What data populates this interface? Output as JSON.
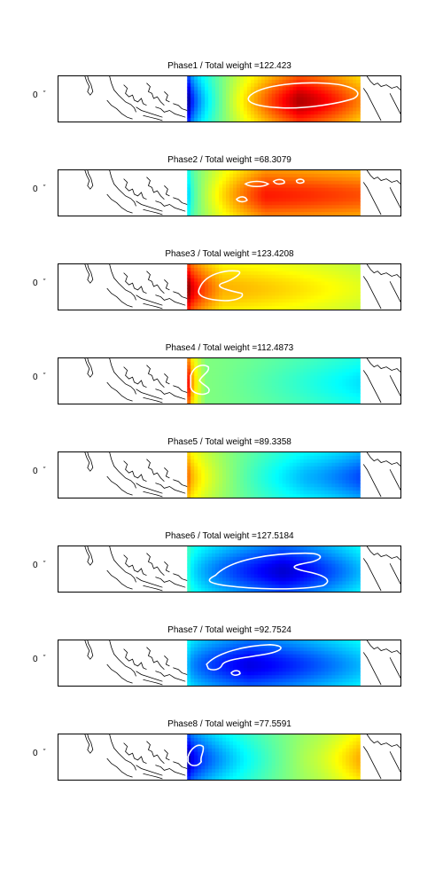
{
  "panels": [
    {
      "title": "Phase1 / Total weight =122.423",
      "ylabel": "0",
      "ytick": "″",
      "anomaly": {
        "west": 0.05,
        "center": 0.95,
        "east": 0.75,
        "center_x": 0.65
      },
      "contour": "positive"
    },
    {
      "title": "Phase2 / Total weight =68.3079",
      "ylabel": "0",
      "ytick": "″",
      "anomaly": {
        "west": 0.35,
        "center": 0.85,
        "east": 0.8,
        "center_x": 0.45
      },
      "contour": "positive-patches"
    },
    {
      "title": "Phase3 / Total weight =123.4208",
      "ylabel": "0",
      "ytick": "″",
      "anomaly": {
        "west": 0.97,
        "center": 0.7,
        "east": 0.6,
        "center_x": 0.2
      },
      "contour": "positive-west"
    },
    {
      "title": "Phase4 / Total weight =112.4873",
      "ylabel": "0",
      "ytick": "″",
      "anomaly": {
        "west": 0.85,
        "center": 0.5,
        "east": 0.35,
        "center_x": 0.1
      },
      "contour": "positive-west-small"
    },
    {
      "title": "Phase5 / Total weight =89.3358",
      "ylabel": "0",
      "ytick": "″",
      "anomaly": {
        "west": 0.75,
        "center": 0.3,
        "east": 0.2,
        "center_x": 0.7
      },
      "contour": "none"
    },
    {
      "title": "Phase6 / Total weight =127.5184",
      "ylabel": "0",
      "ytick": "″",
      "anomaly": {
        "west": 0.4,
        "center": 0.08,
        "east": 0.3,
        "center_x": 0.55
      },
      "contour": "negative"
    },
    {
      "title": "Phase7 / Total weight =92.7524",
      "ylabel": "0",
      "ytick": "″",
      "anomaly": {
        "west": 0.3,
        "center": 0.1,
        "east": 0.3,
        "center_x": 0.35
      },
      "contour": "negative-west"
    },
    {
      "title": "Phase8 / Total weight =77.5591",
      "ylabel": "0",
      "ytick": "″",
      "anomaly": {
        "west": 0.05,
        "center": 0.55,
        "east": 0.7,
        "center_x": 0.7
      },
      "contour": "negative-west-small"
    }
  ]
}
